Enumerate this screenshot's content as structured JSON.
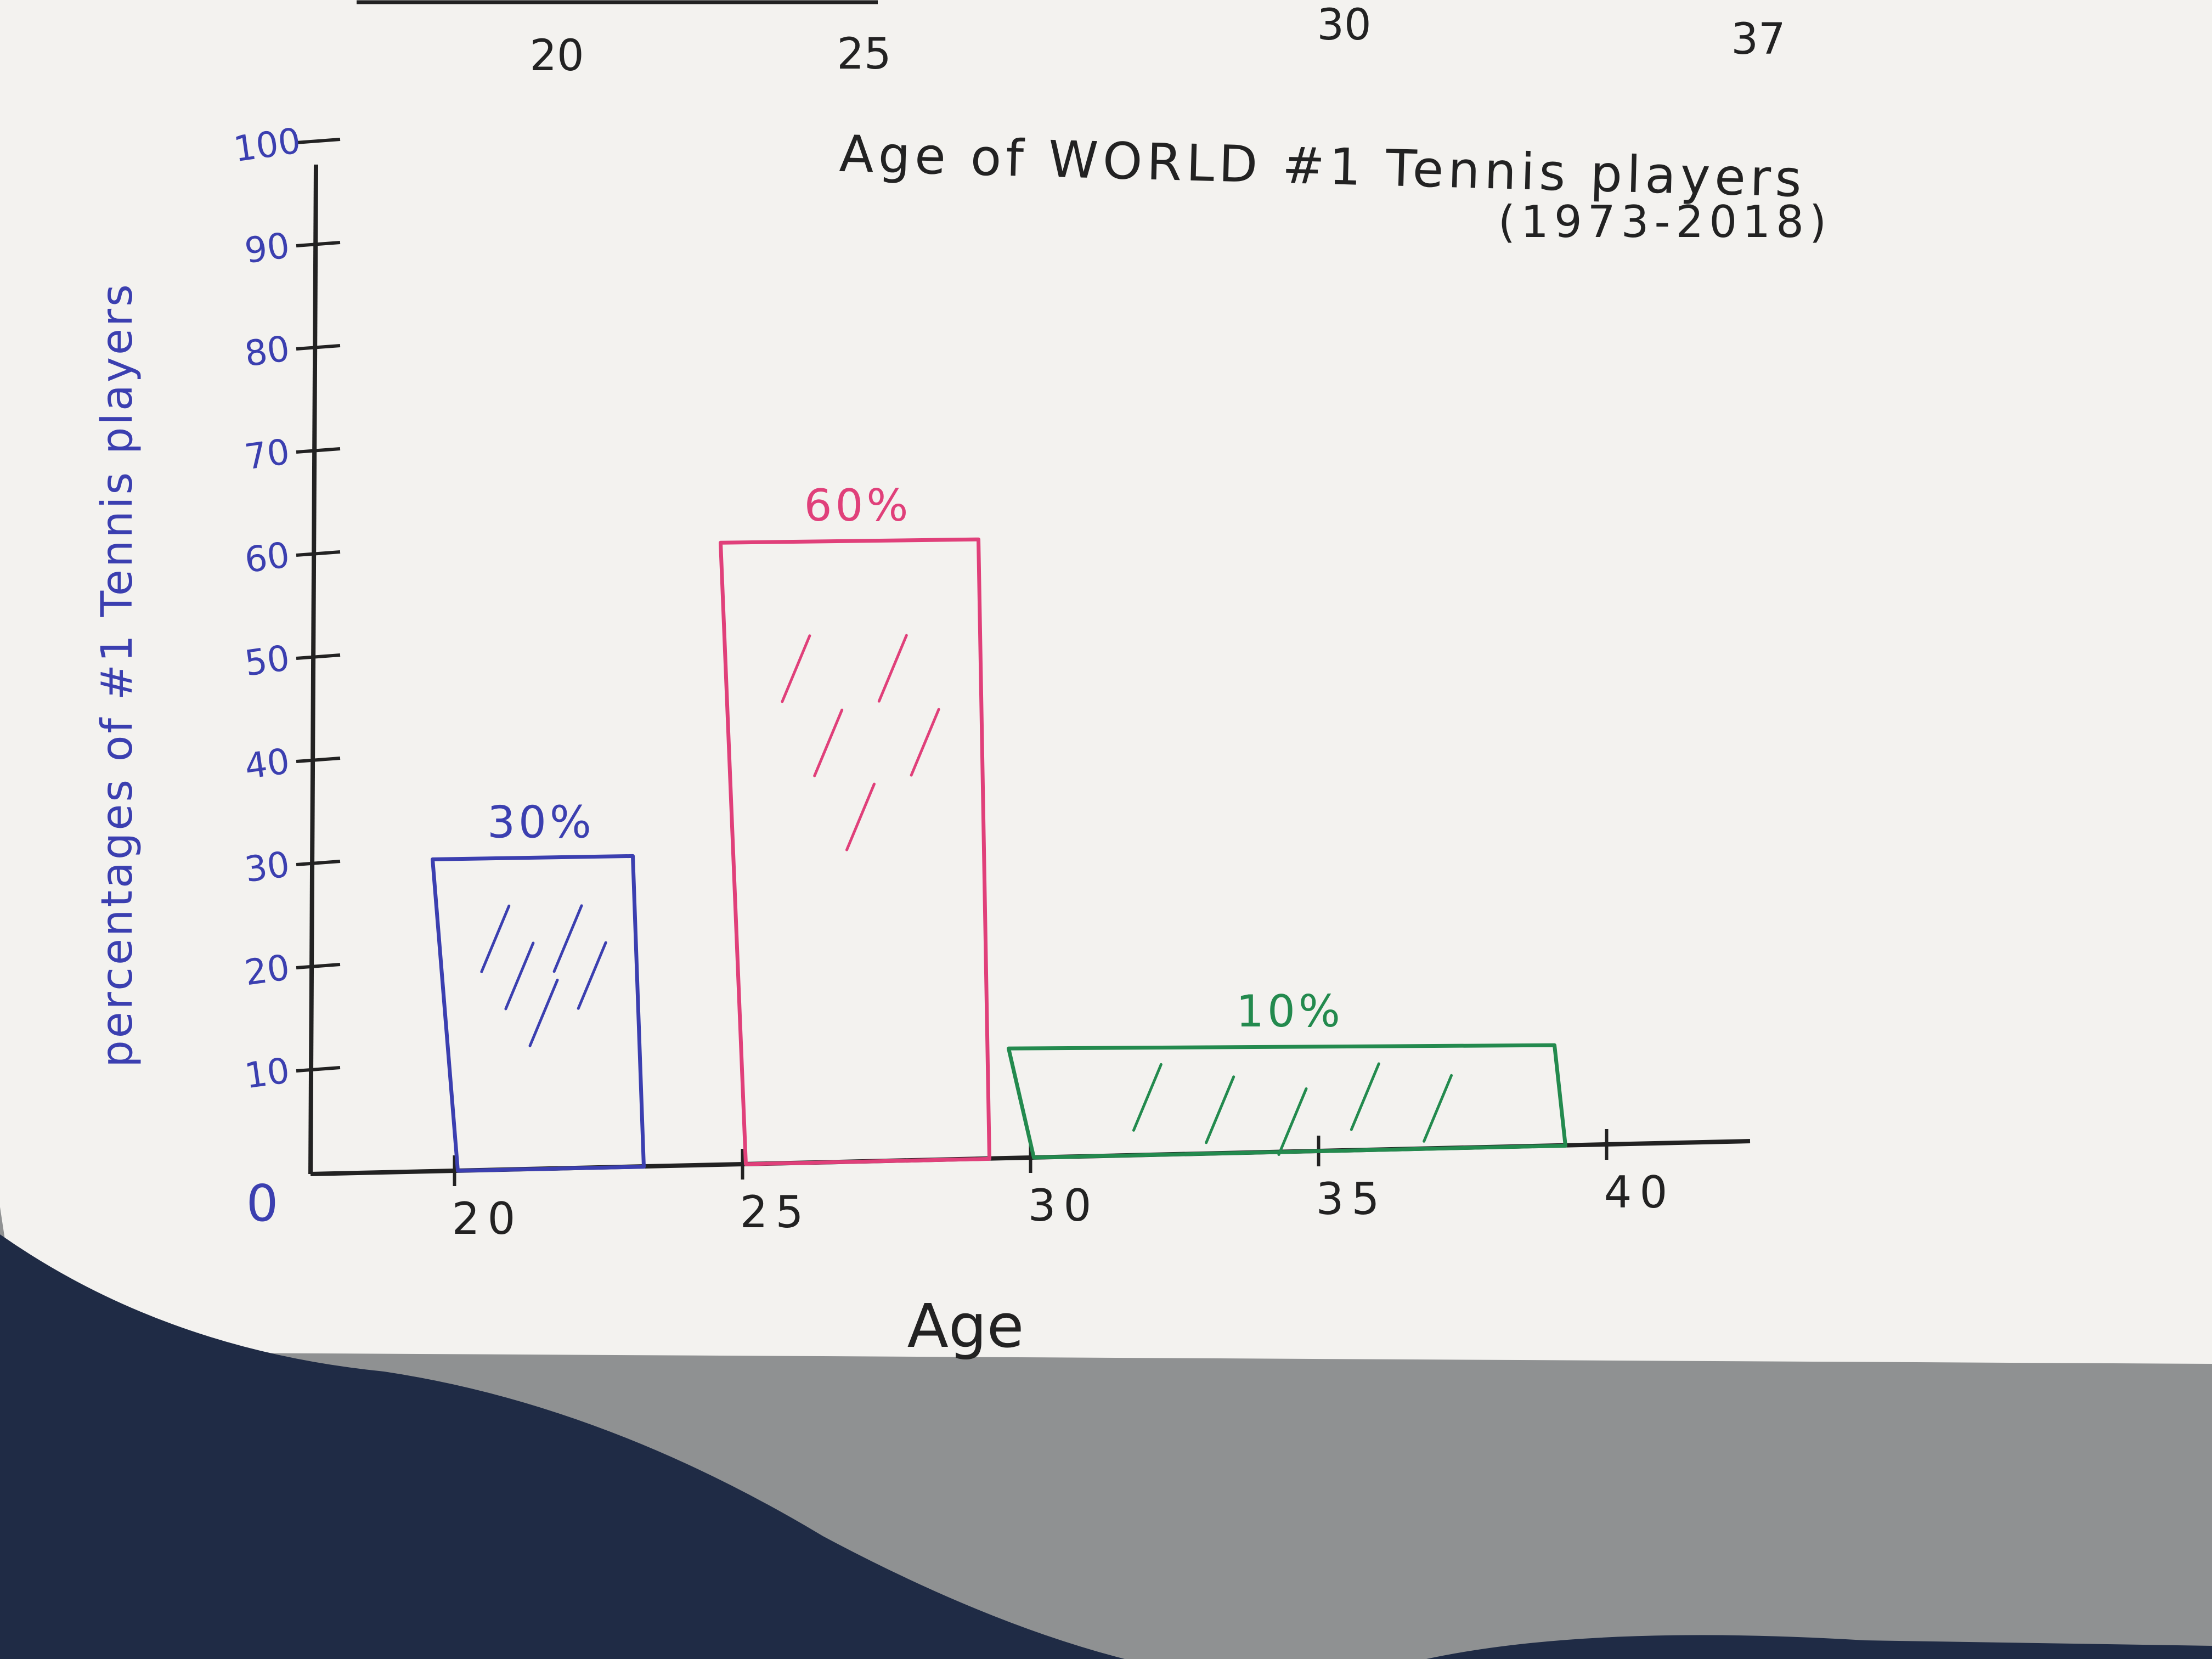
{
  "colors": {
    "table": "#8f9192",
    "paper": "#f3f2ef",
    "ink": "#222222",
    "blue_ink": "#3b3fb0",
    "pink_ink": "#e0407a",
    "green_ink": "#238a4e",
    "cloth": "#1f2b45"
  },
  "previous_chart_ticks": [
    "20",
    "25",
    "30",
    "37"
  ],
  "chart_data": {
    "type": "bar",
    "title": "Age of WORLD #1 Tennis players",
    "subtitle": "(1973-2018)",
    "xlabel": "Age",
    "ylabel": "percentages of #1 Tennis players",
    "x_ticks": [
      "20",
      "25",
      "30",
      "35",
      "40"
    ],
    "x_range": [
      17.5,
      42.5
    ],
    "y_ticks": [
      "10",
      "20",
      "30",
      "40",
      "50",
      "60",
      "70",
      "80",
      "90",
      "100"
    ],
    "y_origin_label": "0",
    "ylim": [
      0,
      100
    ],
    "grid": false,
    "bars": [
      {
        "x_start": 20,
        "x_end": 23,
        "value": 30,
        "label": "30%",
        "color": "#3b3fb0"
      },
      {
        "x_start": 25,
        "x_end": 29,
        "value": 60,
        "label": "60%",
        "color": "#e0407a"
      },
      {
        "x_start": 30,
        "x_end": 39,
        "value": 10,
        "label": "10%",
        "color": "#238a4e"
      }
    ]
  }
}
